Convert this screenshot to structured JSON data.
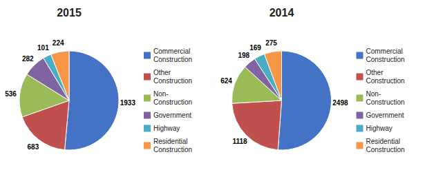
{
  "chart_data": [
    {
      "type": "pie",
      "title": "2015",
      "categories": [
        "Commercial\nConstruction",
        "Other\nConstruction",
        "Non-\nConstruction",
        "Government",
        "Highway",
        "Residential\nConstruction"
      ],
      "values": [
        1933,
        683,
        536,
        282,
        101,
        224
      ],
      "colors": [
        "#4472C4",
        "#C0504D",
        "#9BBB59",
        "#8064A2",
        "#4BACC6",
        "#F79646"
      ],
      "data_labels": true,
      "legend": "right"
    },
    {
      "type": "pie",
      "title": "2014",
      "categories": [
        "Commercial\nConstruction",
        "Other\nConstruction",
        "Non-\nConstruction",
        "Government",
        "Highway",
        "Residential\nConstruction"
      ],
      "values": [
        2498,
        1118,
        624,
        198,
        169,
        275
      ],
      "colors": [
        "#4472C4",
        "#C0504D",
        "#9BBB59",
        "#8064A2",
        "#4BACC6",
        "#F79646"
      ],
      "data_labels": true,
      "legend": "right"
    }
  ]
}
